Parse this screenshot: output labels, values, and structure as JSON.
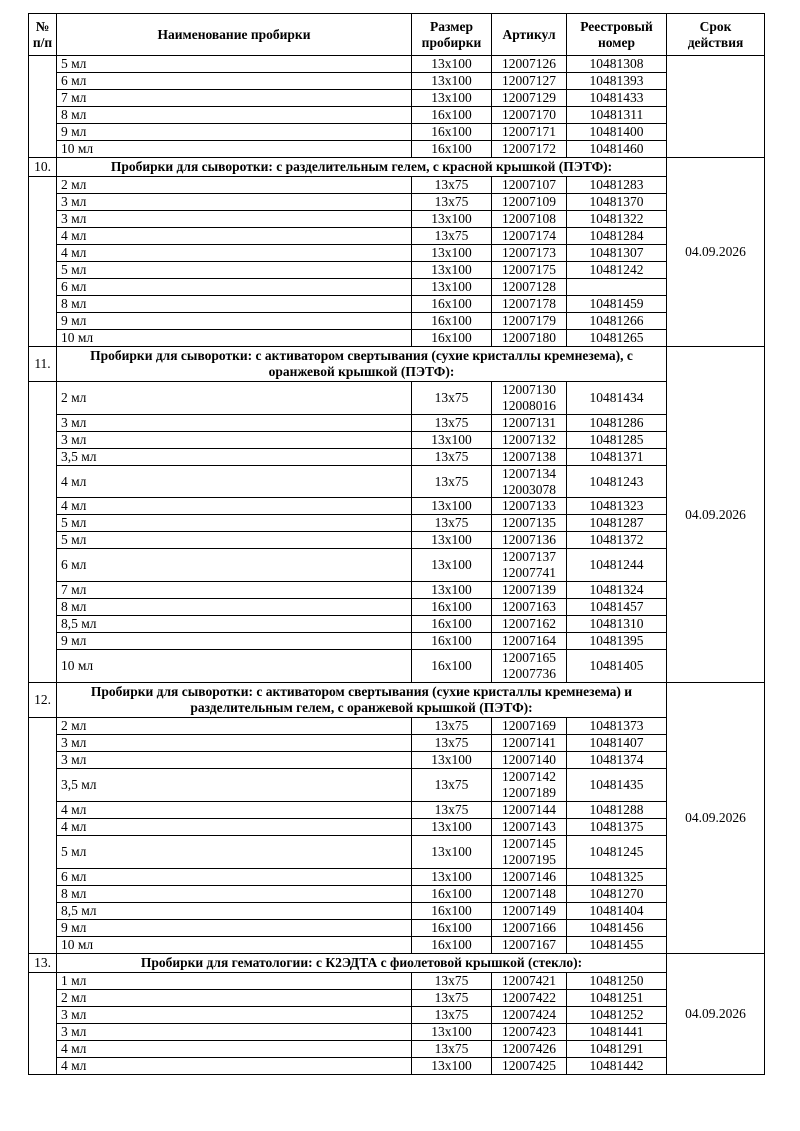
{
  "table": {
    "headers": {
      "number": "№\nп/п",
      "name": "Наименование пробирки",
      "size": "Размер\nпробирки",
      "article": "Артикул",
      "registry": "Реестровый\nномер",
      "validity": "Срок\nдействия"
    },
    "sections": [
      {
        "number": "",
        "title": "",
        "validity": "",
        "rows": [
          {
            "name": "5 мл",
            "size": "13x100",
            "articles": [
              "12007126"
            ],
            "registry": "10481308"
          },
          {
            "name": "6 мл",
            "size": "13x100",
            "articles": [
              "12007127"
            ],
            "registry": "10481393"
          },
          {
            "name": "7 мл",
            "size": "13x100",
            "articles": [
              "12007129"
            ],
            "registry": "10481433"
          },
          {
            "name": "8 мл",
            "size": "16x100",
            "articles": [
              "12007170"
            ],
            "registry": "10481311"
          },
          {
            "name": "9 мл",
            "size": "16x100",
            "articles": [
              "12007171"
            ],
            "registry": "10481400"
          },
          {
            "name": "10 мл",
            "size": "16x100",
            "articles": [
              "12007172"
            ],
            "registry": "10481460"
          }
        ]
      },
      {
        "number": "10.",
        "title": "Пробирки для сыворотки: с разделительным гелем, с красной крышкой (ПЭТФ):",
        "validity": "04.09.2026",
        "rows": [
          {
            "name": "2 мл",
            "size": "13x75",
            "articles": [
              "12007107"
            ],
            "registry": "10481283"
          },
          {
            "name": "3 мл",
            "size": "13x75",
            "articles": [
              "12007109"
            ],
            "registry": "10481370"
          },
          {
            "name": "3 мл",
            "size": "13x100",
            "articles": [
              "12007108"
            ],
            "registry": "10481322"
          },
          {
            "name": "4 мл",
            "size": "13x75",
            "articles": [
              "12007174"
            ],
            "registry": "10481284"
          },
          {
            "name": "4 мл",
            "size": "13x100",
            "articles": [
              "12007173"
            ],
            "registry": "10481307"
          },
          {
            "name": "5 мл",
            "size": "13x100",
            "articles": [
              "12007175"
            ],
            "registry": "10481242"
          },
          {
            "name": "6 мл",
            "size": "13x100",
            "articles": [
              "12007128"
            ],
            "registry": ""
          },
          {
            "name": "8 мл",
            "size": "16x100",
            "articles": [
              "12007178"
            ],
            "registry": "10481459"
          },
          {
            "name": "9 мл",
            "size": "16x100",
            "articles": [
              "12007179"
            ],
            "registry": "10481266"
          },
          {
            "name": "10 мл",
            "size": "16x100",
            "articles": [
              "12007180"
            ],
            "registry": "10481265"
          }
        ]
      },
      {
        "number": "11.",
        "title": "Пробирки для сыворотки: с активатором свертывания (сухие кристаллы кремнезема), с оранжевой крышкой (ПЭТФ):",
        "validity": "04.09.2026",
        "rows": [
          {
            "name": "2 мл",
            "size": "13x75",
            "articles": [
              "12007130",
              "12008016"
            ],
            "registry": "10481434"
          },
          {
            "name": "3 мл",
            "size": "13x75",
            "articles": [
              "12007131"
            ],
            "registry": "10481286"
          },
          {
            "name": "3 мл",
            "size": "13x100",
            "articles": [
              "12007132"
            ],
            "registry": "10481285"
          },
          {
            "name": "3,5 мл",
            "size": "13x75",
            "articles": [
              "12007138"
            ],
            "registry": "10481371"
          },
          {
            "name": "4 мл",
            "size": "13x75",
            "articles": [
              "12007134",
              "12003078"
            ],
            "registry": "10481243"
          },
          {
            "name": "4 мл",
            "size": "13x100",
            "articles": [
              "12007133"
            ],
            "registry": "10481323"
          },
          {
            "name": "5 мл",
            "size": "13x75",
            "articles": [
              "12007135"
            ],
            "registry": "10481287"
          },
          {
            "name": "5 мл",
            "size": "13x100",
            "articles": [
              "12007136"
            ],
            "registry": "10481372"
          },
          {
            "name": "6 мл",
            "size": "13x100",
            "articles": [
              "12007137",
              "12007741"
            ],
            "registry": "10481244"
          },
          {
            "name": "7 мл",
            "size": "13x100",
            "articles": [
              "12007139"
            ],
            "registry": "10481324"
          },
          {
            "name": "8 мл",
            "size": "16x100",
            "articles": [
              "12007163"
            ],
            "registry": "10481457"
          },
          {
            "name": "8,5 мл",
            "size": "16x100",
            "articles": [
              "12007162"
            ],
            "registry": "10481310"
          },
          {
            "name": "9 мл",
            "size": "16x100",
            "articles": [
              "12007164"
            ],
            "registry": "10481395"
          },
          {
            "name": "10 мл",
            "size": "16x100",
            "articles": [
              "12007165",
              "12007736"
            ],
            "registry": "10481405"
          }
        ]
      },
      {
        "number": "12.",
        "title": "Пробирки для сыворотки: с активатором свертывания (сухие кристаллы кремнезема) и разделительным гелем, с оранжевой крышкой (ПЭТФ):",
        "validity": "04.09.2026",
        "rows": [
          {
            "name": "2 мл",
            "size": "13x75",
            "articles": [
              "12007169"
            ],
            "registry": "10481373"
          },
          {
            "name": "3 мл",
            "size": "13x75",
            "articles": [
              "12007141"
            ],
            "registry": "10481407"
          },
          {
            "name": "3 мл",
            "size": "13x100",
            "articles": [
              "12007140"
            ],
            "registry": "10481374"
          },
          {
            "name": "3,5 мл",
            "size": "13x75",
            "articles": [
              "12007142",
              "12007189"
            ],
            "registry": "10481435"
          },
          {
            "name": "4 мл",
            "size": "13x75",
            "articles": [
              "12007144"
            ],
            "registry": "10481288"
          },
          {
            "name": "4 мл",
            "size": "13x100",
            "articles": [
              "12007143"
            ],
            "registry": "10481375"
          },
          {
            "name": "5 мл",
            "size": "13x100",
            "articles": [
              "12007145",
              "12007195"
            ],
            "registry": "10481245"
          },
          {
            "name": "6 мл",
            "size": "13x100",
            "articles": [
              "12007146"
            ],
            "registry": "10481325"
          },
          {
            "name": "8 мл",
            "size": "16x100",
            "articles": [
              "12007148"
            ],
            "registry": "10481270"
          },
          {
            "name": "8,5 мл",
            "size": "16x100",
            "articles": [
              "12007149"
            ],
            "registry": "10481404"
          },
          {
            "name": "9 мл",
            "size": "16x100",
            "articles": [
              "12007166"
            ],
            "registry": "10481456"
          },
          {
            "name": "10 мл",
            "size": "16x100",
            "articles": [
              "12007167"
            ],
            "registry": "10481455"
          }
        ]
      },
      {
        "number": "13.",
        "title": "Пробирки для гематологии: с К2ЭДТА с фиолетовой крышкой (стекло):",
        "validity": "04.09.2026",
        "rows": [
          {
            "name": "1 мл",
            "size": "13x75",
            "articles": [
              "12007421"
            ],
            "registry": "10481250"
          },
          {
            "name": "2 мл",
            "size": "13x75",
            "articles": [
              "12007422"
            ],
            "registry": "10481251"
          },
          {
            "name": "3 мл",
            "size": "13x75",
            "articles": [
              "12007424"
            ],
            "registry": "10481252"
          },
          {
            "name": "3 мл",
            "size": "13x100",
            "articles": [
              "12007423"
            ],
            "registry": "10481441"
          },
          {
            "name": "4 мл",
            "size": "13x75",
            "articles": [
              "12007426"
            ],
            "registry": "10481291"
          },
          {
            "name": "4 мл",
            "size": "13x100",
            "articles": [
              "12007425"
            ],
            "registry": "10481442"
          }
        ]
      }
    ]
  }
}
